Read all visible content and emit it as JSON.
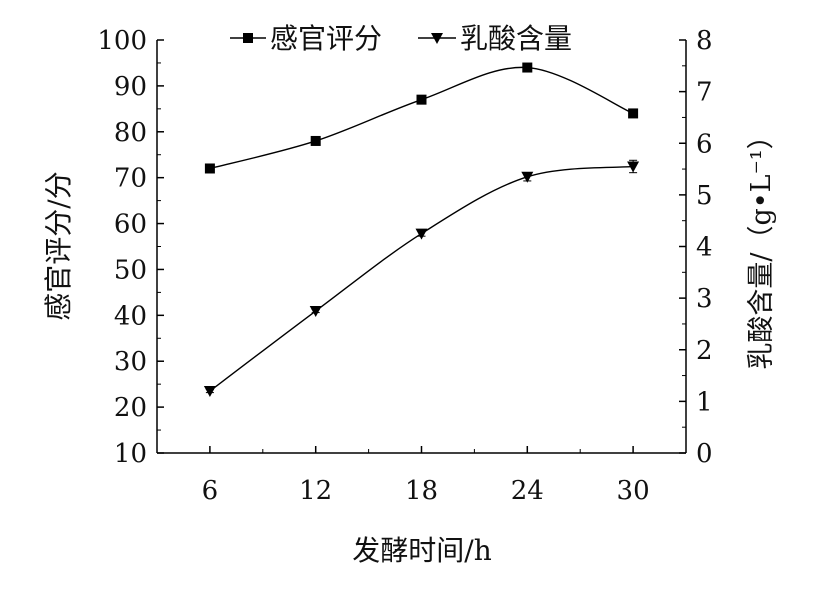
{
  "chart_data": {
    "type": "line",
    "x": [
      6,
      12,
      18,
      24,
      30
    ],
    "x_tick_labels": [
      "6",
      "12",
      "18",
      "24",
      "30"
    ],
    "xlabel": "发酵时间/h",
    "y_left": {
      "label": "感官评分/分",
      "range": [
        10,
        100
      ],
      "ticks": [
        "10",
        "20",
        "30",
        "40",
        "50",
        "60",
        "70",
        "80",
        "90",
        "100"
      ]
    },
    "y_right": {
      "label": "乳酸含量/（g•L⁻¹）",
      "range": [
        0,
        8
      ],
      "ticks": [
        "0",
        "1",
        "2",
        "3",
        "4",
        "5",
        "6",
        "7",
        "8"
      ]
    },
    "series": [
      {
        "name": "感官评分",
        "axis": "left",
        "marker": "square",
        "values": [
          72,
          78,
          87,
          94,
          84
        ]
      },
      {
        "name": "乳酸含量",
        "axis": "right",
        "marker": "triangle-down",
        "values": [
          1.2,
          2.75,
          4.25,
          5.35,
          5.55
        ],
        "error": [
          0.03,
          0.03,
          0.05,
          0.08,
          0.12
        ]
      }
    ],
    "legend_position": "top-center",
    "grid": false,
    "colors": {
      "line": "#000000",
      "text": "#111111"
    }
  }
}
